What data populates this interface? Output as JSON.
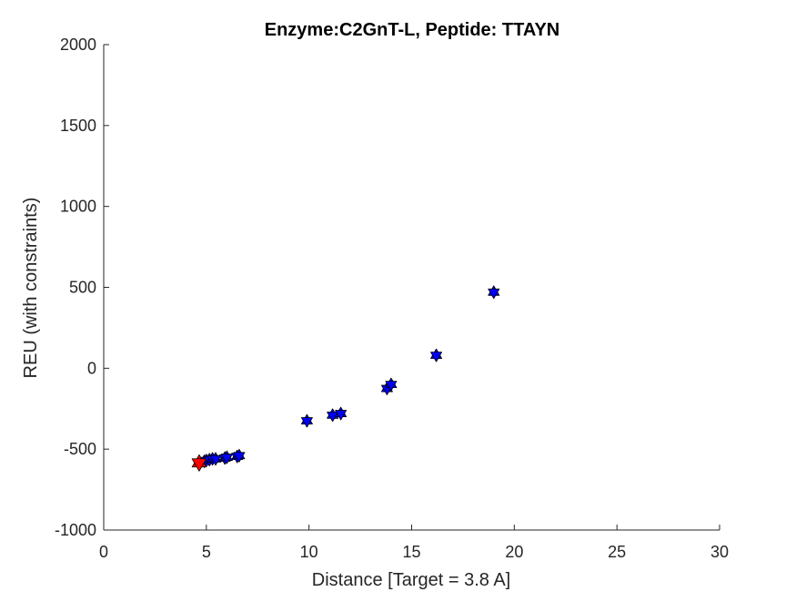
{
  "chart_data": {
    "type": "scatter",
    "title": "Enzyme:C2GnT-L, Peptide: TTAYN",
    "xlabel": "Distance [Target = 3.8 A]",
    "ylabel": "REU (with constraints)",
    "xlim": [
      0,
      30
    ],
    "ylim": [
      -1000,
      2000
    ],
    "xticks": [
      0,
      5,
      10,
      15,
      20,
      25,
      30
    ],
    "yticks": [
      -1000,
      -500,
      0,
      500,
      1000,
      1500,
      2000
    ],
    "xtick_labels": [
      "0",
      "5",
      "10",
      "15",
      "20",
      "25",
      "30"
    ],
    "ytick_labels": [
      "-1000",
      "-500",
      "0",
      "500",
      "1000",
      "1500",
      "2000"
    ],
    "grid": false,
    "marker": "hexagram",
    "series": [
      {
        "color": "#0000ff",
        "points": [
          [
            4.9,
            -575
          ],
          [
            5.0,
            -570
          ],
          [
            5.15,
            -565
          ],
          [
            5.3,
            -560
          ],
          [
            5.45,
            -560
          ],
          [
            5.9,
            -555
          ],
          [
            6.0,
            -550
          ],
          [
            6.5,
            -545
          ],
          [
            6.6,
            -540
          ],
          [
            9.9,
            -325
          ],
          [
            11.15,
            -290
          ],
          [
            11.55,
            -280
          ],
          [
            13.8,
            -125
          ],
          [
            14.0,
            -100
          ],
          [
            16.2,
            80
          ],
          [
            19.0,
            470
          ]
        ]
      },
      {
        "color": "#ff0000",
        "points": [
          [
            4.65,
            -585
          ]
        ]
      }
    ]
  }
}
